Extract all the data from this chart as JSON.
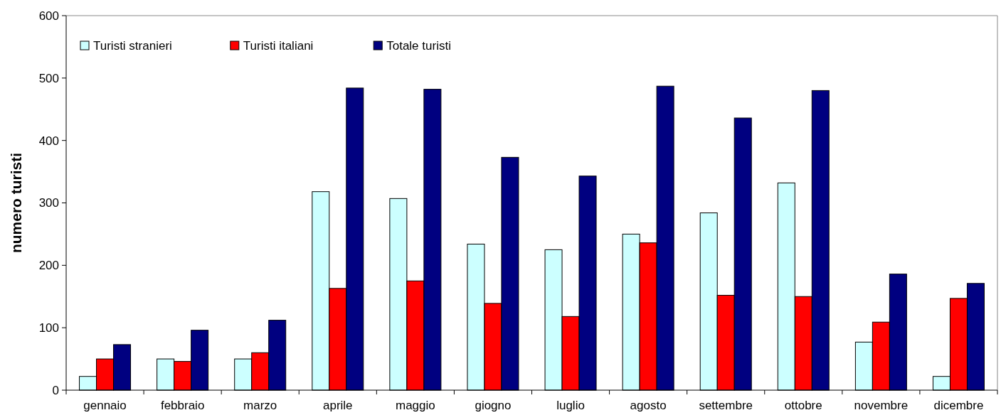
{
  "chart_data": {
    "type": "bar",
    "ylabel": "numero turisti",
    "categories": [
      "gennaio",
      "febbraio",
      "marzo",
      "aprile",
      "maggio",
      "giogno",
      "luglio",
      "agosto",
      "settembre",
      "ottobre",
      "novembre",
      "dicembre"
    ],
    "series": [
      {
        "name": "Turisti stranieri",
        "color": "#ccffff",
        "values": [
          22,
          50,
          50,
          318,
          307,
          234,
          225,
          250,
          284,
          332,
          77,
          22
        ]
      },
      {
        "name": "Turisti italiani",
        "color": "#ff0000",
        "values": [
          50,
          46,
          60,
          163,
          175,
          139,
          118,
          236,
          152,
          150,
          109,
          147
        ]
      },
      {
        "name": "Totale turisti",
        "color": "#000080",
        "values": [
          73,
          96,
          112,
          484,
          482,
          373,
          343,
          487,
          436,
          480,
          186,
          171
        ]
      }
    ],
    "ylim": [
      0,
      600
    ],
    "yticks": [
      0,
      100,
      200,
      300,
      400,
      500,
      600
    ],
    "grid": false,
    "legend": "top left"
  }
}
